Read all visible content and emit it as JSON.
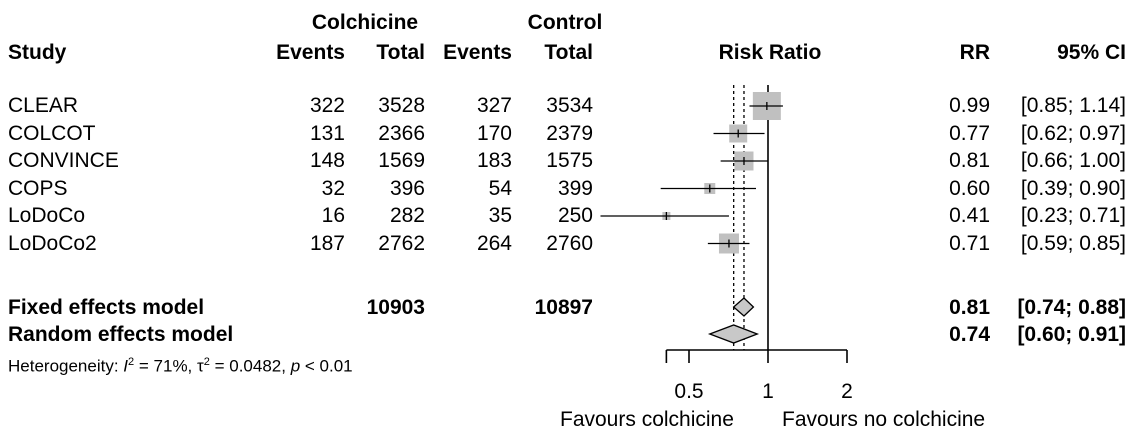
{
  "chart_data": {
    "type": "forest",
    "headers": {
      "group1": "Colchicine",
      "group2": "Control",
      "study": "Study",
      "events": "Events",
      "total": "Total",
      "plot": "Risk Ratio",
      "rr": "RR",
      "ci": "95% CI"
    },
    "studies": [
      {
        "name": "CLEAR",
        "e1": "322",
        "t1": "3528",
        "e2": "327",
        "t2": "3534",
        "rr": 0.99,
        "lo": 0.85,
        "hi": 1.14,
        "rr_text": "0.99",
        "ci_text": "[0.85; 1.14]"
      },
      {
        "name": "COLCOT",
        "e1": "131",
        "t1": "2366",
        "e2": "170",
        "t2": "2379",
        "rr": 0.77,
        "lo": 0.62,
        "hi": 0.97,
        "rr_text": "0.77",
        "ci_text": "[0.62; 0.97]"
      },
      {
        "name": "CONVINCE",
        "e1": "148",
        "t1": "1569",
        "e2": "183",
        "t2": "1575",
        "rr": 0.81,
        "lo": 0.66,
        "hi": 1.0,
        "rr_text": "0.81",
        "ci_text": "[0.66; 1.00]"
      },
      {
        "name": "COPS",
        "e1": "32",
        "t1": "396",
        "e2": "54",
        "t2": "399",
        "rr": 0.6,
        "lo": 0.39,
        "hi": 0.9,
        "rr_text": "0.60",
        "ci_text": "[0.39; 0.90]"
      },
      {
        "name": "LoDoCo",
        "e1": "16",
        "t1": "282",
        "e2": "35",
        "t2": "250",
        "rr": 0.41,
        "lo": 0.23,
        "hi": 0.71,
        "rr_text": "0.41",
        "ci_text": "[0.23; 0.71]"
      },
      {
        "name": "LoDoCo2",
        "e1": "187",
        "t1": "2762",
        "e2": "264",
        "t2": "2760",
        "rr": 0.71,
        "lo": 0.59,
        "hi": 0.85,
        "rr_text": "0.71",
        "ci_text": "[0.59; 0.85]"
      }
    ],
    "fixed": {
      "label": "Fixed effects model",
      "t1": "10903",
      "t2": "10897",
      "rr": 0.81,
      "lo": 0.74,
      "hi": 0.88,
      "rr_text": "0.81",
      "ci_text": "[0.74; 0.88]"
    },
    "random": {
      "label": "Random effects model",
      "rr": 0.74,
      "lo": 0.6,
      "hi": 0.91,
      "rr_text": "0.74",
      "ci_text": "[0.60; 0.91]"
    },
    "heterogeneity": {
      "prefix": "Heterogeneity: ",
      "i2_symbol": "I",
      "i2_sup": "2",
      "i2_value": " = 71%, ",
      "tau_symbol": "τ",
      "tau_sup": "2",
      "tau_value": " = 0.0482, ",
      "p_symbol": "p",
      "p_value": " < 0.01"
    },
    "x_scale": "log",
    "x_ticks": [
      {
        "value": 0.5,
        "label": "0.5"
      },
      {
        "value": 1,
        "label": "1"
      },
      {
        "value": 2,
        "label": "2"
      }
    ],
    "x_range": [
      0.2,
      2
    ],
    "favours_left": "Favours colchicine",
    "favours_right": "Favours no colchicine",
    "colors": {
      "square": "#c0c0c0",
      "diamond": "#c8c8c8",
      "line": "#000000"
    }
  }
}
